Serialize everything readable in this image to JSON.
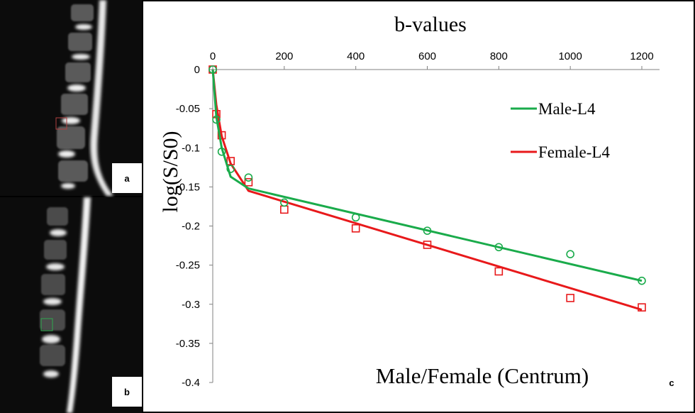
{
  "panels": {
    "a": "a",
    "b": "b",
    "c": "c"
  },
  "colors": {
    "male": "#1aab4b",
    "female": "#e8191b"
  },
  "chart_data": {
    "type": "line",
    "title": "b-values",
    "xlabel": "b-values",
    "ylabel": "log(S/S0)",
    "caption": "Male/Female (Centrum)",
    "xlim": [
      0,
      1200
    ],
    "ylim": [
      -0.4,
      0
    ],
    "x_ticks": [
      0,
      200,
      400,
      600,
      800,
      1000,
      1200
    ],
    "x_tick_labels": [
      "0",
      "200",
      "400",
      "600",
      "800",
      "1000",
      "1200"
    ],
    "y_ticks": [
      0,
      -0.05,
      -0.1,
      -0.15,
      -0.2,
      -0.25,
      -0.3,
      -0.35,
      -0.4
    ],
    "y_tick_labels": [
      "0",
      "-0.05",
      "-0.1",
      "-0.15",
      "-0.2",
      "-0.25",
      "-0.3",
      "-0.35",
      "-0.4"
    ],
    "legend_position": "top-right",
    "series": [
      {
        "name": "Male-L4",
        "color": "#1aab4b",
        "marker": "circle",
        "points": [
          {
            "x": 0,
            "y": 0
          },
          {
            "x": 10,
            "y": -0.064
          },
          {
            "x": 25,
            "y": -0.105
          },
          {
            "x": 50,
            "y": -0.127
          },
          {
            "x": 100,
            "y": -0.138
          },
          {
            "x": 200,
            "y": -0.17
          },
          {
            "x": 400,
            "y": -0.189
          },
          {
            "x": 600,
            "y": -0.206
          },
          {
            "x": 800,
            "y": -0.227
          },
          {
            "x": 1000,
            "y": -0.236
          },
          {
            "x": 1200,
            "y": -0.27
          }
        ],
        "fit": [
          {
            "x": 0,
            "y": 0
          },
          {
            "x": 10,
            "y": -0.06
          },
          {
            "x": 25,
            "y": -0.1
          },
          {
            "x": 50,
            "y": -0.137
          },
          {
            "x": 100,
            "y": -0.152
          },
          {
            "x": 1200,
            "y": -0.27
          }
        ]
      },
      {
        "name": "Female-L4",
        "color": "#e8191b",
        "marker": "square",
        "points": [
          {
            "x": 0,
            "y": 0
          },
          {
            "x": 10,
            "y": -0.057
          },
          {
            "x": 25,
            "y": -0.084
          },
          {
            "x": 50,
            "y": -0.117
          },
          {
            "x": 100,
            "y": -0.144
          },
          {
            "x": 200,
            "y": -0.179
          },
          {
            "x": 400,
            "y": -0.203
          },
          {
            "x": 600,
            "y": -0.224
          },
          {
            "x": 800,
            "y": -0.258
          },
          {
            "x": 1000,
            "y": -0.292
          },
          {
            "x": 1200,
            "y": -0.304
          }
        ],
        "fit": [
          {
            "x": 0,
            "y": 0
          },
          {
            "x": 10,
            "y": -0.045
          },
          {
            "x": 25,
            "y": -0.085
          },
          {
            "x": 50,
            "y": -0.12
          },
          {
            "x": 100,
            "y": -0.155
          },
          {
            "x": 1200,
            "y": -0.307
          }
        ]
      }
    ]
  }
}
